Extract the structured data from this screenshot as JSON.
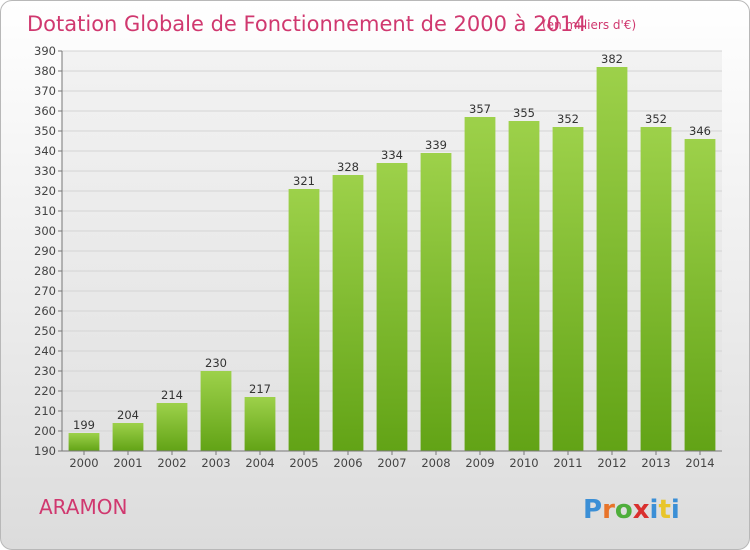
{
  "title": "Dotation Globale de Fonctionnement de 2000 à 2014",
  "subtitle": "(en milliers d'€)",
  "city": "ARAMON",
  "logo": {
    "text": "Proxiti",
    "letter_colors": [
      "#3b8fd6",
      "#e8742a",
      "#4fae3b",
      "#d9302f",
      "#3b8fd6",
      "#e8c52a",
      "#3b8fd6"
    ]
  },
  "colors": {
    "bar_top": "#9dd14a",
    "bar_bottom": "#62a316",
    "title": "#d0386f"
  },
  "chart_data": {
    "type": "bar",
    "categories": [
      "2000",
      "2001",
      "2002",
      "2003",
      "2004",
      "2005",
      "2006",
      "2007",
      "2008",
      "2009",
      "2010",
      "2011",
      "2012",
      "2013",
      "2014"
    ],
    "values": [
      199,
      204,
      214,
      230,
      217,
      321,
      328,
      334,
      339,
      357,
      355,
      352,
      382,
      352,
      346
    ],
    "title": "Dotation Globale de Fonctionnement de 2000 à 2014",
    "subtitle": "(en milliers d'€)",
    "ylim": [
      190,
      390
    ],
    "ytick_step": 10,
    "grid": true
  }
}
